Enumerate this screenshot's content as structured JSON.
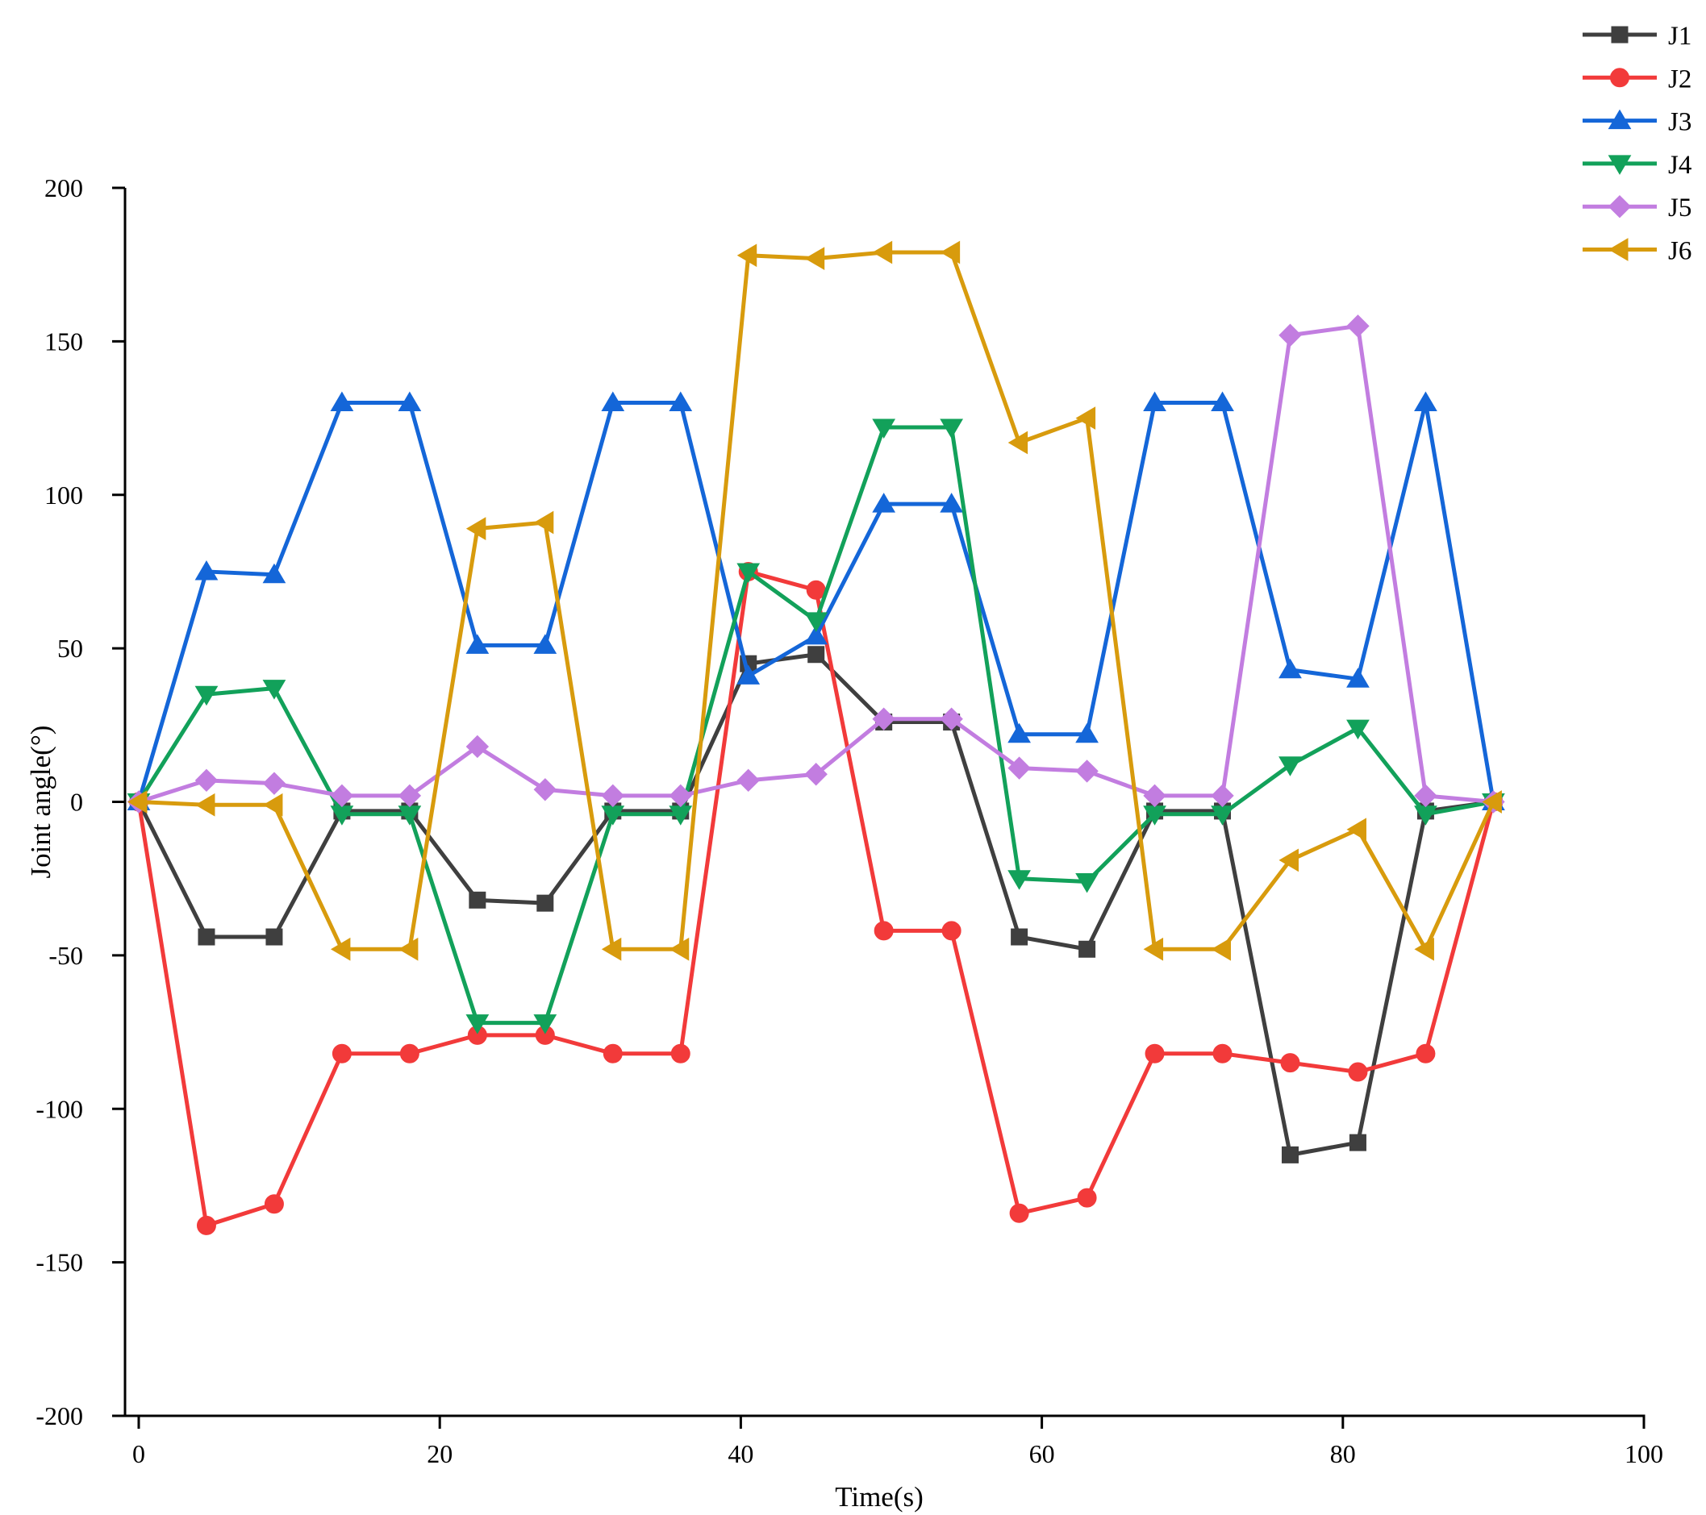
{
  "chart_data": {
    "type": "line",
    "title": "",
    "xlabel": "Time(s)",
    "ylabel": "Joint angle(°)",
    "xlim": [
      0,
      100
    ],
    "ylim": [
      -200,
      200
    ],
    "xticks": [
      0,
      20,
      40,
      60,
      80,
      100
    ],
    "yticks": [
      -200,
      -150,
      -100,
      -50,
      0,
      50,
      100,
      150,
      200
    ],
    "grid": false,
    "legend_position": "top-right",
    "x": [
      0,
      4.5,
      9,
      13.5,
      18,
      22.5,
      27,
      31.5,
      36,
      40.5,
      45,
      49.5,
      54,
      58.5,
      63,
      67.5,
      72,
      76.5,
      81,
      85.5,
      90
    ],
    "series": [
      {
        "name": "J1",
        "color": "#3f3f3f",
        "marker": "square",
        "values": [
          0,
          -44,
          -44,
          -3,
          -3,
          -32,
          -33,
          -3,
          -3,
          45,
          48,
          26,
          26,
          -44,
          -48,
          -3,
          -3,
          -115,
          -111,
          -3,
          0
        ]
      },
      {
        "name": "J2",
        "color": "#f23a3a",
        "marker": "circle",
        "values": [
          0,
          -138,
          -131,
          -82,
          -82,
          -76,
          -76,
          -82,
          -82,
          75,
          69,
          -42,
          -42,
          -134,
          -129,
          -82,
          -82,
          -85,
          -88,
          -82,
          0
        ]
      },
      {
        "name": "J3",
        "color": "#1466d8",
        "marker": "triangle-up",
        "values": [
          0,
          75,
          74,
          130,
          130,
          51,
          51,
          130,
          130,
          41,
          54,
          97,
          97,
          22,
          22,
          130,
          130,
          43,
          40,
          130,
          0
        ]
      },
      {
        "name": "J4",
        "color": "#12a15a",
        "marker": "triangle-down",
        "values": [
          0,
          35,
          37,
          -4,
          -4,
          -72,
          -72,
          -4,
          -4,
          75,
          59,
          122,
          122,
          -25,
          -26,
          -4,
          -4,
          12,
          24,
          -4,
          0
        ]
      },
      {
        "name": "J5",
        "color": "#c27de0",
        "marker": "diamond",
        "values": [
          0,
          7,
          6,
          2,
          2,
          18,
          4,
          2,
          2,
          7,
          9,
          27,
          27,
          11,
          10,
          2,
          2,
          152,
          155,
          2,
          0
        ]
      },
      {
        "name": "J6",
        "color": "#d89b0d",
        "marker": "triangle-left",
        "values": [
          0,
          -1,
          -1,
          -48,
          -48,
          89,
          91,
          -48,
          -48,
          178,
          177,
          179,
          179,
          117,
          125,
          -48,
          -48,
          -19,
          -9,
          -48,
          0
        ]
      }
    ]
  }
}
